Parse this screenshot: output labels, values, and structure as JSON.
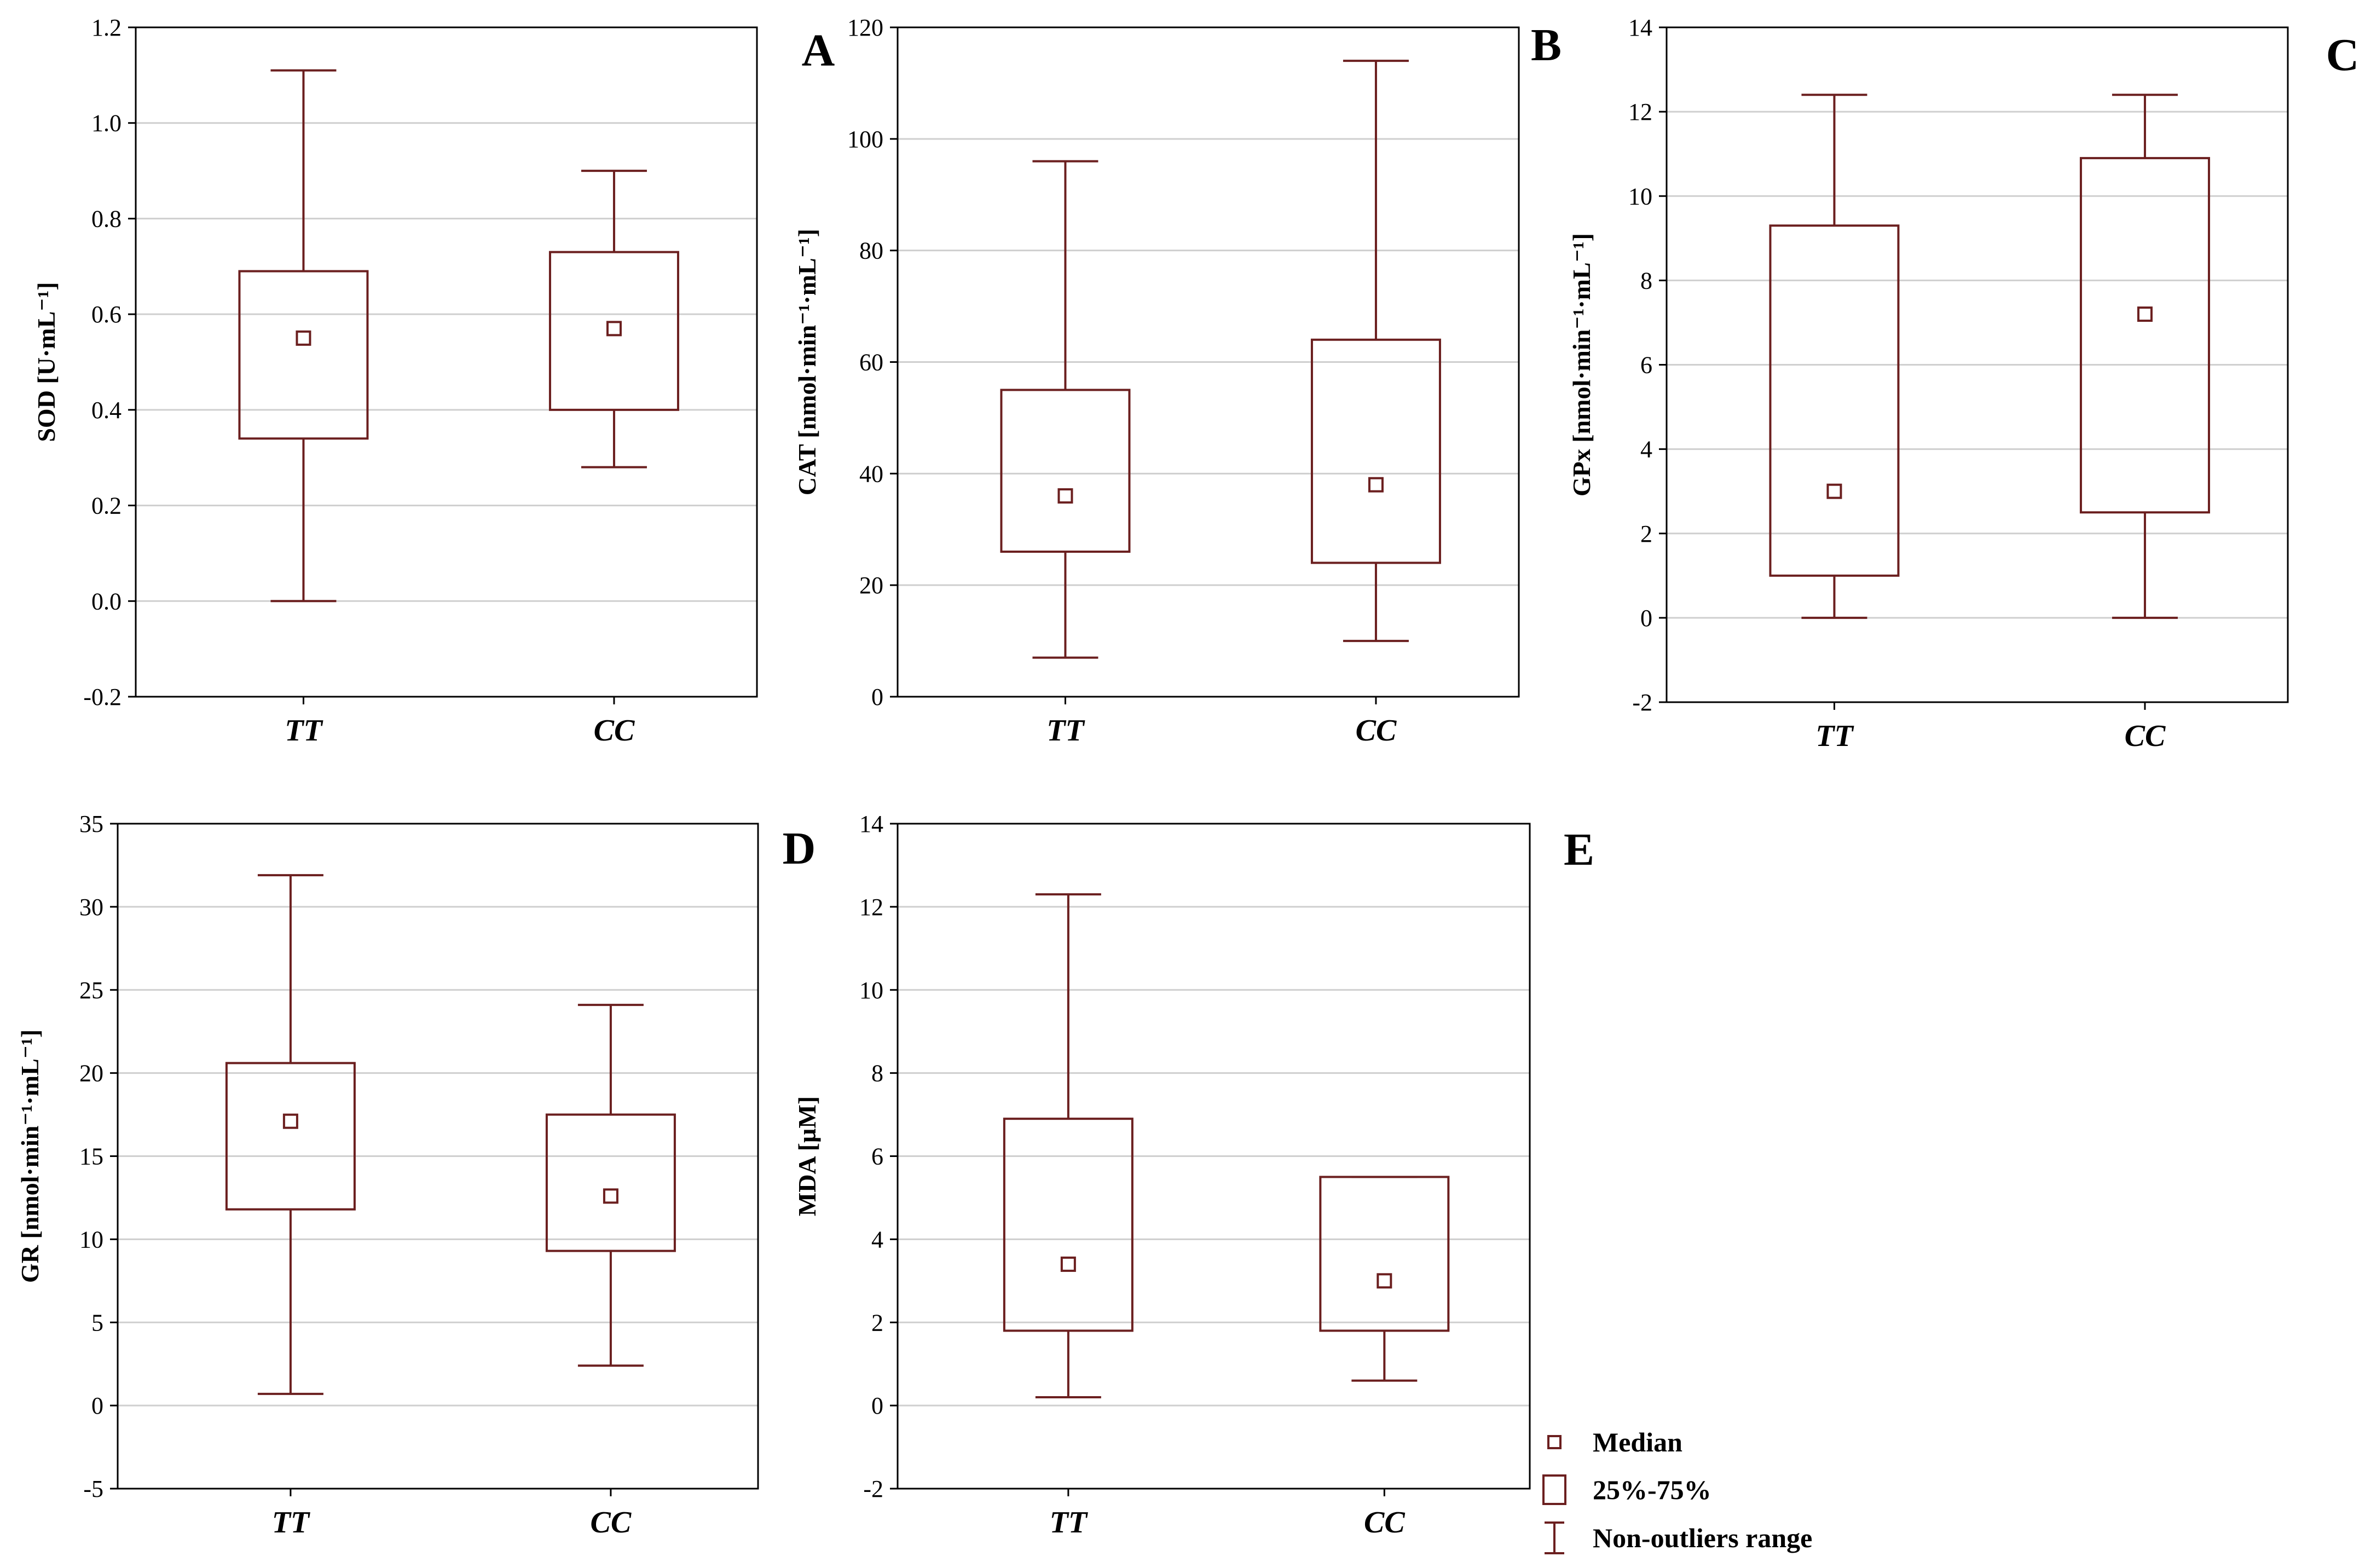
{
  "chart_data": [
    {
      "type": "box",
      "panel_label": "A",
      "ylabel": "SOD [U·mL⁻¹]",
      "ylim": [
        -0.2,
        1.2
      ],
      "yticks": [
        -0.2,
        0.0,
        0.2,
        0.4,
        0.6,
        0.8,
        1.0,
        1.2
      ],
      "ytick_labels": [
        "-0.2",
        "0.0",
        "0.2",
        "0.4",
        "0.6",
        "0.8",
        "1.0",
        "1.2"
      ],
      "categories": [
        "TT",
        "CC"
      ],
      "series": [
        {
          "name": "TT",
          "min": 0.0,
          "q1": 0.34,
          "median": 0.55,
          "q3": 0.69,
          "max": 1.11
        },
        {
          "name": "CC",
          "min": 0.28,
          "q1": 0.4,
          "median": 0.57,
          "q3": 0.73,
          "max": 0.9
        }
      ]
    },
    {
      "type": "box",
      "panel_label": "B",
      "ylabel": "CAT [nmol·min⁻¹·mL⁻¹]",
      "ylim": [
        0,
        120
      ],
      "yticks": [
        0,
        20,
        40,
        60,
        80,
        100,
        120
      ],
      "ytick_labels": [
        "0",
        "20",
        "40",
        "60",
        "80",
        "100",
        "120"
      ],
      "categories": [
        "TT",
        "CC"
      ],
      "series": [
        {
          "name": "TT",
          "min": 7,
          "q1": 26,
          "median": 36,
          "q3": 55,
          "max": 96
        },
        {
          "name": "CC",
          "min": 10,
          "q1": 24,
          "median": 38,
          "q3": 64,
          "max": 114
        }
      ]
    },
    {
      "type": "box",
      "panel_label": "C",
      "ylabel": "GPx [nmol·min⁻¹·mL⁻¹]",
      "ylim": [
        -2,
        14
      ],
      "yticks": [
        -2,
        0,
        2,
        4,
        6,
        8,
        10,
        12,
        14
      ],
      "ytick_labels": [
        "-2",
        "0",
        "2",
        "4",
        "6",
        "8",
        "10",
        "12",
        "14"
      ],
      "categories": [
        "TT",
        "CC"
      ],
      "series": [
        {
          "name": "TT",
          "min": 0.0,
          "q1": 1.0,
          "median": 3.0,
          "q3": 9.3,
          "max": 12.4
        },
        {
          "name": "CC",
          "min": 0.0,
          "q1": 2.5,
          "median": 7.2,
          "q3": 10.9,
          "max": 12.4
        }
      ]
    },
    {
      "type": "box",
      "panel_label": "D",
      "ylabel": "GR [nmol·min⁻¹·mL⁻¹]",
      "ylim": [
        -5,
        35
      ],
      "yticks": [
        -5,
        0,
        5,
        10,
        15,
        20,
        25,
        30,
        35
      ],
      "ytick_labels": [
        "-5",
        "0",
        "5",
        "10",
        "15",
        "20",
        "25",
        "30",
        "35"
      ],
      "categories": [
        "TT",
        "CC"
      ],
      "series": [
        {
          "name": "TT",
          "min": 0.7,
          "q1": 11.8,
          "median": 17.1,
          "q3": 20.6,
          "max": 31.9
        },
        {
          "name": "CC",
          "min": 2.4,
          "q1": 9.3,
          "median": 12.6,
          "q3": 17.5,
          "max": 24.1
        }
      ]
    },
    {
      "type": "box",
      "panel_label": "E",
      "ylabel": "MDA [µM]",
      "ylim": [
        -2,
        14
      ],
      "yticks": [
        -2,
        0,
        2,
        4,
        6,
        8,
        10,
        12,
        14
      ],
      "ytick_labels": [
        "-2",
        "0",
        "2",
        "4",
        "6",
        "8",
        "10",
        "12",
        "14"
      ],
      "categories": [
        "TT",
        "CC"
      ],
      "series": [
        {
          "name": "TT",
          "min": 0.2,
          "q1": 1.8,
          "median": 3.4,
          "q3": 6.9,
          "max": 12.3
        },
        {
          "name": "CC",
          "min": 0.6,
          "q1": 1.8,
          "median": 3.0,
          "q3": 5.5,
          "max": 5.5
        }
      ]
    }
  ],
  "legend": {
    "items": [
      {
        "symbol": "median",
        "label": "Median"
      },
      {
        "symbol": "box",
        "label": "25%-75%"
      },
      {
        "symbol": "whisker",
        "label": "Non-outliers range"
      }
    ]
  },
  "colors": {
    "box": "#6b1f1f",
    "grid": "#cfcfcf",
    "axis": "#000000"
  }
}
